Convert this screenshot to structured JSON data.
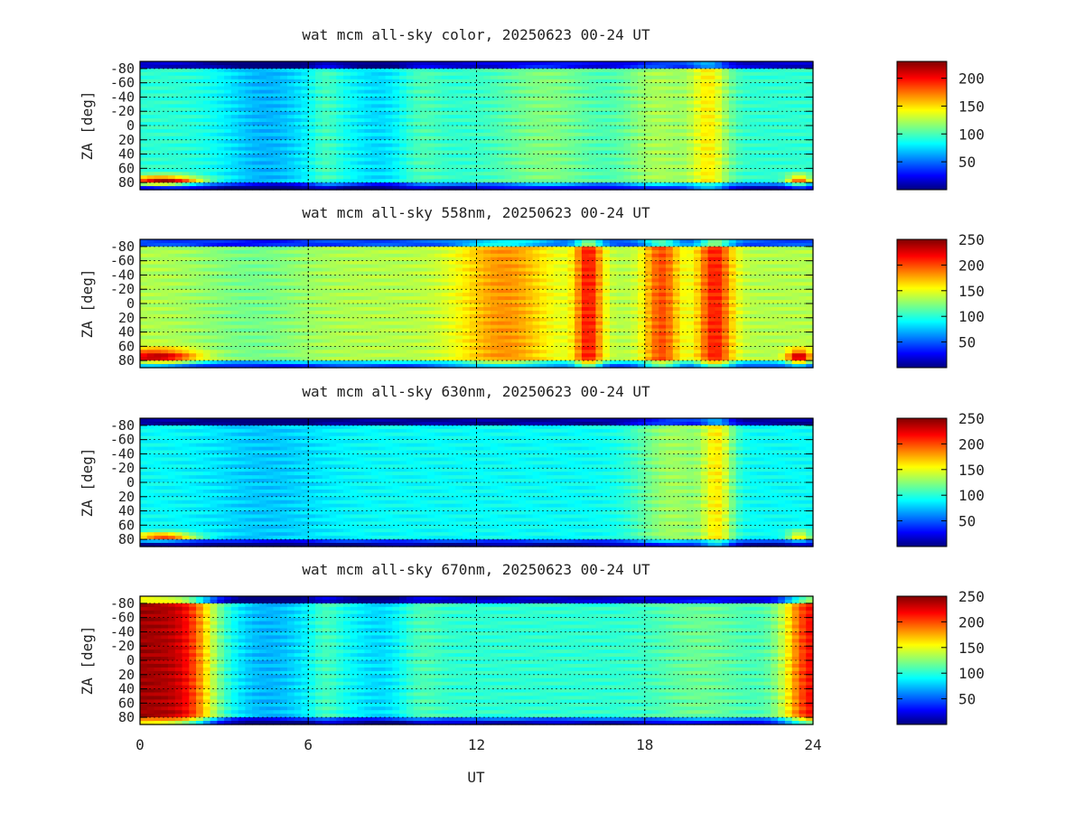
{
  "figure": {
    "xlabel": "UT",
    "ylabel": "ZA [deg]",
    "x_ticks": [
      "0",
      "6",
      "12",
      "18",
      "24"
    ],
    "y_ticks": [
      "-80",
      "-60",
      "-40",
      "-20",
      "0",
      "20",
      "40",
      "60",
      "80"
    ],
    "grid": true
  },
  "chart_data": [
    {
      "type": "heatmap",
      "title": "wat mcm all-sky color, 20250623 00-24 UT",
      "xlabel": "",
      "ylabel": "ZA [deg]",
      "xlim": [
        0,
        24
      ],
      "ylim": [
        -90,
        90
      ],
      "colorbar": {
        "min": 0,
        "max": 230,
        "ticks": [
          "50",
          "100",
          "150",
          "200"
        ]
      },
      "dominant_features": [
        "red/orange patch near 0-2 UT at ZA 60-80",
        "yellow bands near 18-21 UT"
      ]
    },
    {
      "type": "heatmap",
      "title": "wat mcm all-sky 558nm, 20250623 00-24 UT",
      "xlabel": "",
      "ylabel": "ZA [deg]",
      "xlim": [
        0,
        24
      ],
      "ylim": [
        -90,
        90
      ],
      "colorbar": {
        "min": 0,
        "max": 250,
        "ticks": [
          "50",
          "100",
          "150",
          "200",
          "250"
        ]
      },
      "dominant_features": [
        "bright red bands near 16, 18.5 and 20.5 UT",
        "orange region 12-14 UT"
      ]
    },
    {
      "type": "heatmap",
      "title": "wat mcm all-sky 630nm, 20250623 00-24 UT",
      "xlabel": "",
      "ylabel": "ZA [deg]",
      "xlim": [
        0,
        24
      ],
      "ylim": [
        -90,
        90
      ],
      "colorbar": {
        "min": 0,
        "max": 250,
        "ticks": [
          "50",
          "100",
          "150",
          "200",
          "250"
        ]
      },
      "dominant_features": [
        "mostly cyan/blue",
        "yellow band near 20-21 UT"
      ]
    },
    {
      "type": "heatmap",
      "title": "wat mcm all-sky 670nm, 20250623 00-24 UT",
      "xlabel": "UT",
      "ylabel": "ZA [deg]",
      "xlim": [
        0,
        24
      ],
      "ylim": [
        -90,
        90
      ],
      "colorbar": {
        "min": 0,
        "max": 250,
        "ticks": [
          "50",
          "100",
          "150",
          "200",
          "250"
        ]
      },
      "dominant_features": [
        "red/orange 0-2.5 UT all zenith angles",
        "red 23-24 UT"
      ]
    }
  ]
}
